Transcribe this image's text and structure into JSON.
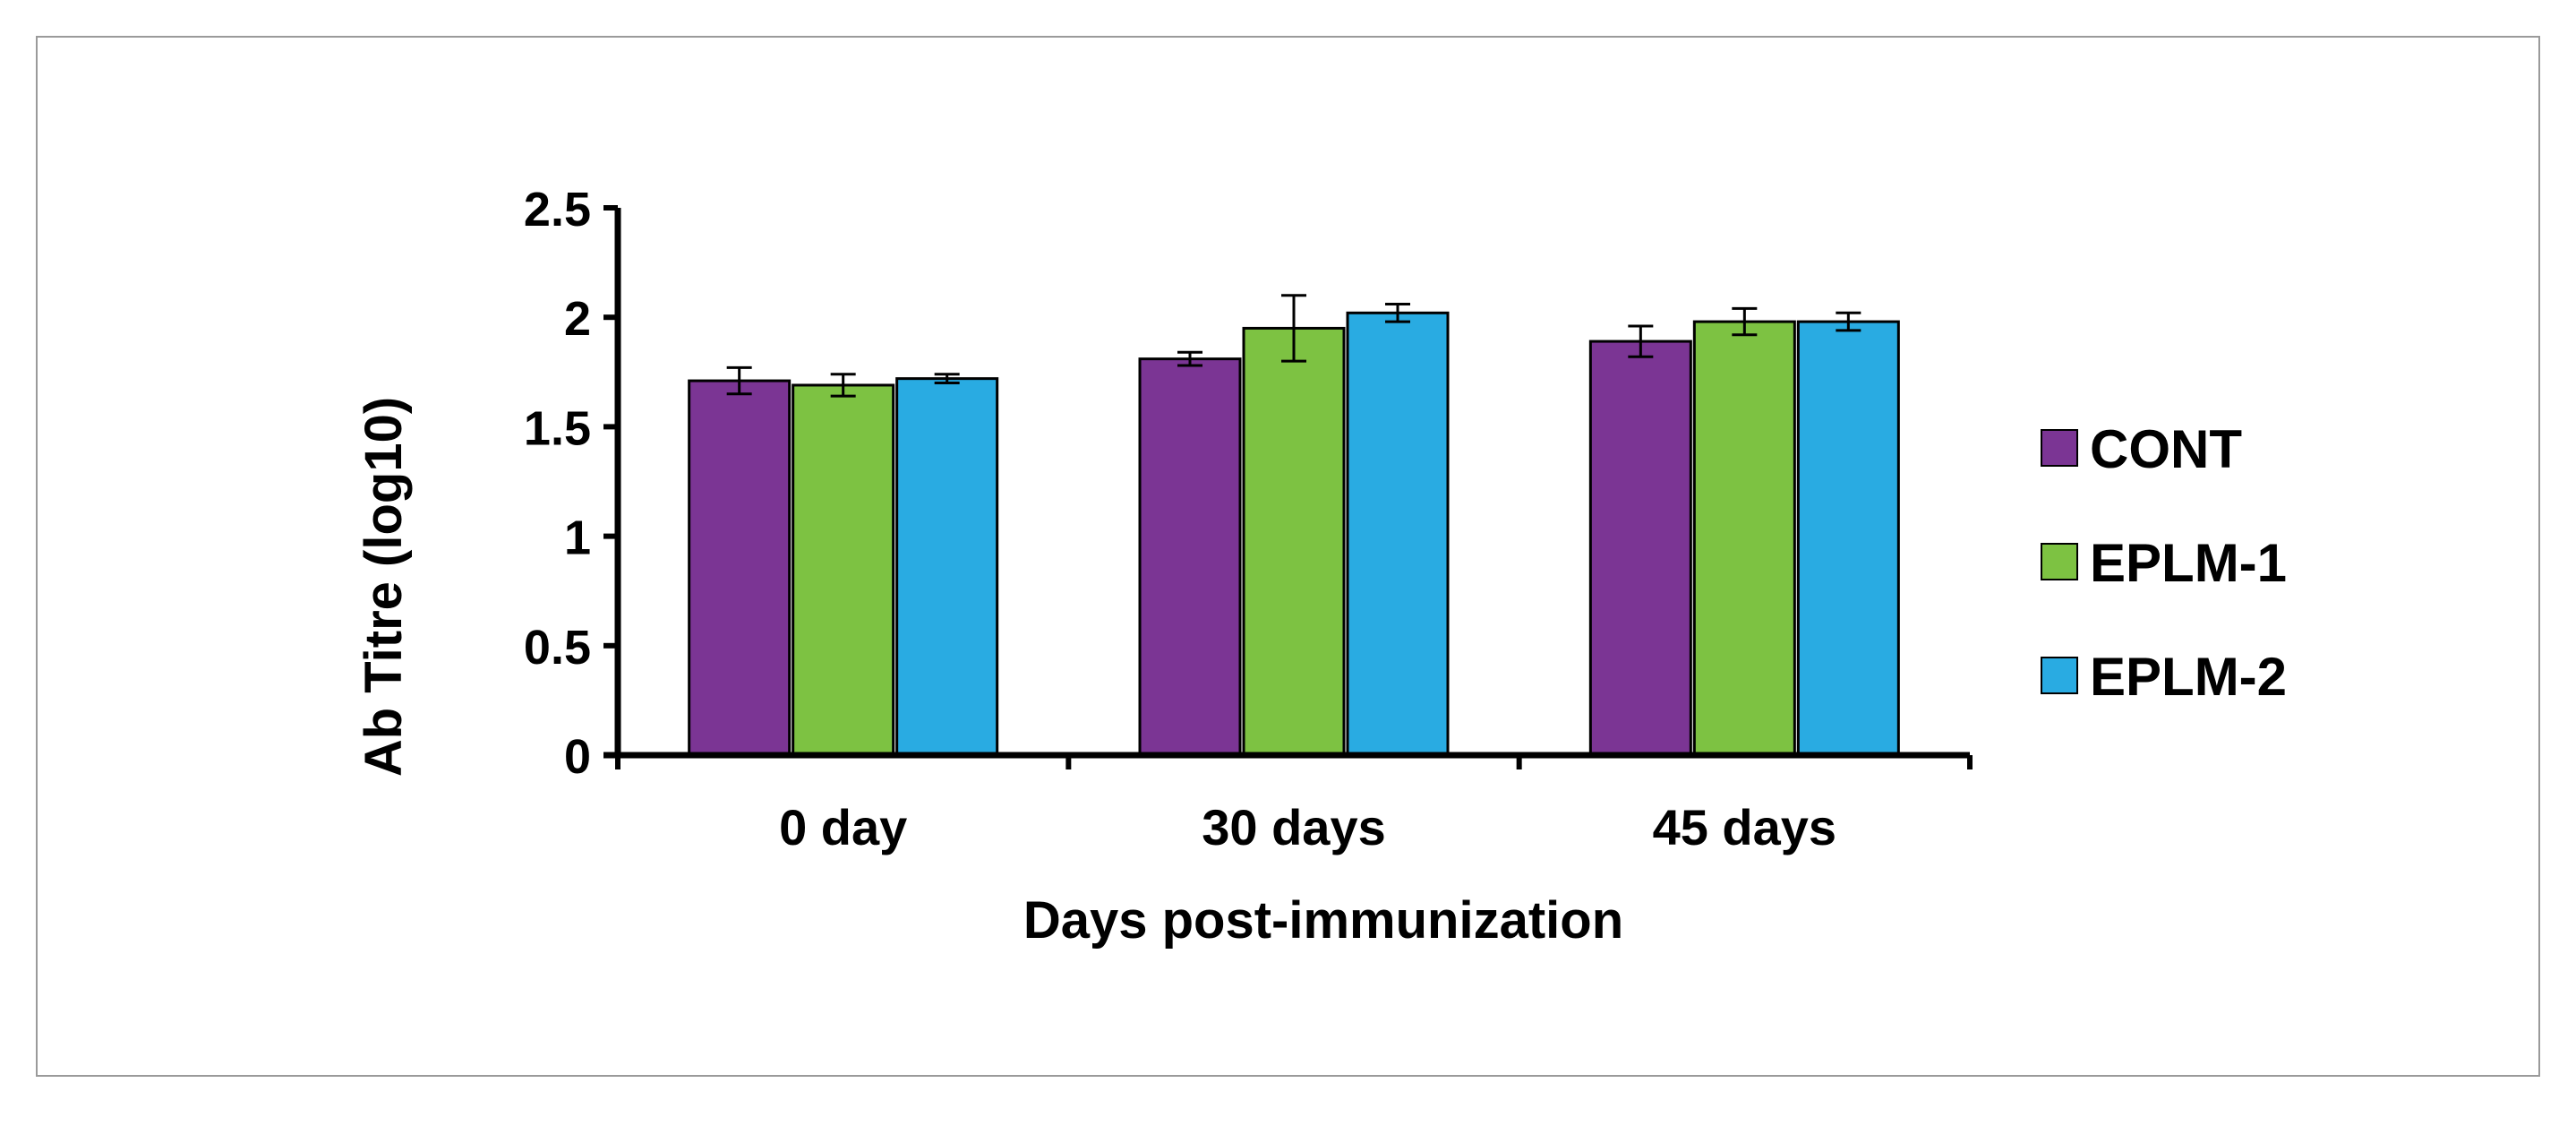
{
  "chart_data": {
    "type": "bar",
    "title": "",
    "xlabel": "Days post-immunization",
    "ylabel": "Ab Titre (log10)",
    "ylim": [
      0,
      2.5
    ],
    "yticks": [
      "0",
      "0.5",
      "1",
      "1.5",
      "2",
      "2.5"
    ],
    "categories": [
      "0 day",
      "30 days",
      "45 days"
    ],
    "legend_position": "right",
    "series": [
      {
        "name": "CONT",
        "color": "#7B3594",
        "values": [
          1.71,
          1.81,
          1.89
        ],
        "errors": [
          0.06,
          0.03,
          0.07
        ]
      },
      {
        "name": "EPLM-1",
        "color": "#7DC242",
        "values": [
          1.69,
          1.95,
          1.98
        ],
        "errors": [
          0.05,
          0.15,
          0.06
        ]
      },
      {
        "name": "EPLM-2",
        "color": "#29ABE2",
        "values": [
          1.72,
          2.02,
          1.98
        ],
        "errors": [
          0.02,
          0.04,
          0.04
        ]
      }
    ]
  }
}
